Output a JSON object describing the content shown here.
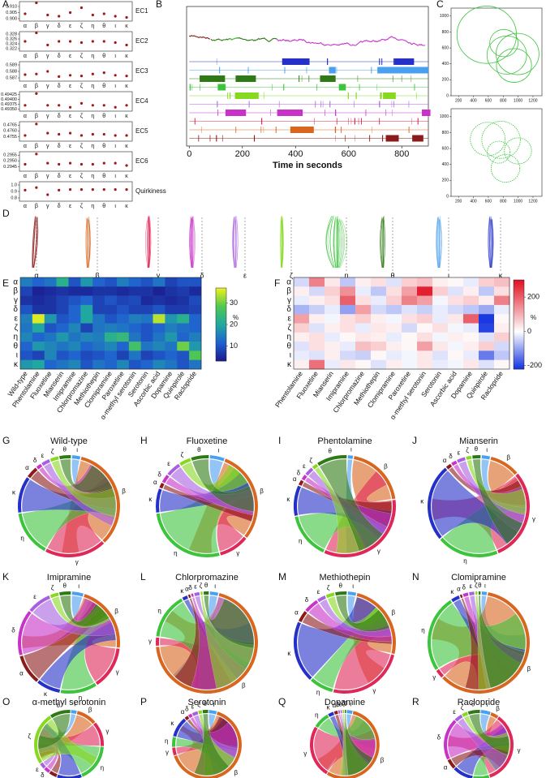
{
  "greek_colors": {
    "α": "#8b1a1a",
    "β": "#d9661f",
    "γ": "#e02858",
    "δ": "#c832c8",
    "ε": "#a860e0",
    "ζ": "#86d820",
    "η": "#3cc43c",
    "θ": "#2f7a14",
    "ι": "#4aa0f0",
    "κ": "#2430c8"
  },
  "panel_labels": [
    "A",
    "B",
    "C",
    "D",
    "E",
    "F",
    "G",
    "H",
    "I",
    "J",
    "K",
    "L",
    "M",
    "N",
    "O",
    "P",
    "Q",
    "R"
  ],
  "chart_data": [
    {
      "type": "dot",
      "label": "EC1",
      "color": "#a01818",
      "categories": [
        "α",
        "β",
        "γ",
        "δ",
        "ε",
        "ζ",
        "η",
        "θ",
        "ι",
        "κ"
      ],
      "values": [
        0.904,
        0.913,
        0.903,
        0.902,
        0.905,
        0.909,
        0.903,
        0.904,
        0.902,
        0.901
      ],
      "ylim": [
        0.898,
        0.914
      ],
      "yticks": [
        {
          "value": 0.9,
          "label": "0.900"
        },
        0.905,
        {
          "value": 0.91,
          "label": "0.910"
        }
      ]
    },
    {
      "type": "dot",
      "label": "EC2",
      "color": "#a01818",
      "categories": [
        "α",
        "β",
        "γ",
        "δ",
        "ε",
        "ζ",
        "η",
        "θ",
        "ι",
        "κ"
      ],
      "values": [
        0.325,
        0.3285,
        0.3235,
        0.325,
        0.325,
        0.3245,
        0.325,
        0.325,
        0.3245,
        0.3235
      ],
      "ylim": [
        0.321,
        0.329
      ],
      "yticks": [
        0.322,
        0.324,
        0.326,
        0.328
      ]
    },
    {
      "type": "dot",
      "label": "EC3",
      "color": "#a01818",
      "categories": [
        "α",
        "β",
        "γ",
        "δ",
        "ε",
        "ζ",
        "η",
        "θ",
        "ι",
        "κ"
      ],
      "values": [
        0.5875,
        0.5876,
        0.588,
        0.5872,
        0.5874,
        0.5873,
        0.5876,
        0.5878,
        0.5874,
        0.5873
      ],
      "ylim": [
        0.5865,
        0.5895
      ],
      "yticks": [
        0.587,
        0.588,
        0.589
      ]
    },
    {
      "type": "dot",
      "label": "EC4",
      "color": "#a01818",
      "categories": [
        "α",
        "β",
        "γ",
        "δ",
        "ε",
        "ζ",
        "η",
        "θ",
        "ι",
        "κ"
      ],
      "values": [
        0.4937,
        0.4943,
        0.4937,
        0.4937,
        0.4936,
        0.4938,
        0.4937,
        0.4937,
        0.4936,
        0.4937
      ],
      "ylim": [
        0.4934,
        0.4944
      ],
      "yticks": [
        {
          "value": 0.4935,
          "label": "0.49350"
        },
        0.49375,
        {
          "value": 0.494,
          "label": "0.49400"
        },
        0.49425
      ]
    },
    {
      "type": "dot",
      "label": "EC5",
      "color": "#a01818",
      "categories": [
        "α",
        "β",
        "γ",
        "δ",
        "ε",
        "ζ",
        "η",
        "θ",
        "ι",
        "κ"
      ],
      "values": [
        0.4756,
        0.4766,
        0.4758,
        0.4757,
        0.4758,
        0.4756,
        0.4757,
        0.4757,
        0.4756,
        0.4756
      ],
      "ylim": [
        0.4751,
        0.4768
      ],
      "yticks": [
        0.4755,
        {
          "value": 0.476,
          "label": "0.4760"
        },
        0.4765
      ]
    },
    {
      "type": "dot",
      "label": "EC6",
      "color": "#a01818",
      "categories": [
        "α",
        "β",
        "γ",
        "δ",
        "ε",
        "ζ",
        "η",
        "θ",
        "ι",
        "κ"
      ],
      "values": [
        0.2947,
        0.2956,
        0.2948,
        0.2947,
        0.2948,
        0.2947,
        0.2947,
        0.2948,
        0.2948,
        0.2946
      ],
      "ylim": [
        0.2941,
        0.2958
      ],
      "yticks": [
        0.2945,
        {
          "value": 0.295,
          "label": "0.2950"
        },
        0.2955
      ]
    },
    {
      "type": "dot",
      "label": "Quirkiness",
      "color": "#a01818",
      "categories": [
        "α",
        "β",
        "γ",
        "δ",
        "ε",
        "ζ",
        "η",
        "θ",
        "ι",
        "κ"
      ],
      "values": [
        0.92,
        0.96,
        0.85,
        0.92,
        0.93,
        0.93,
        0.93,
        0.93,
        0.93,
        0.93
      ],
      "ylim": [
        0.75,
        1.05
      ],
      "yticks": [
        0.8,
        0.9,
        {
          "value": 1.0,
          "label": "1.0"
        }
      ]
    },
    {
      "type": "ethogram",
      "xlabel": "Time in seconds",
      "xlim": [
        -10,
        900
      ],
      "xticks": [
        0,
        200,
        400,
        600,
        800
      ]
    },
    {
      "type": "trajectory",
      "color": "#3cc43c",
      "xlim": [
        100,
        1320
      ],
      "ylim": [
        0,
        1100
      ],
      "xticks": [
        200,
        400,
        600,
        800,
        1000,
        1200
      ],
      "yticks": [
        0,
        200,
        400,
        600,
        800,
        1000
      ]
    },
    {
      "type": "trajectory",
      "color": "#3cc43c",
      "xlim": [
        100,
        1320
      ],
      "ylim": [
        0,
        1100
      ],
      "xticks": [
        200,
        400,
        600,
        800,
        1000,
        1200
      ],
      "yticks": [
        0,
        200,
        400,
        600,
        800,
        1000
      ]
    },
    {
      "type": "shapes",
      "categories": [
        "α",
        "β",
        "γ",
        "δ",
        "ε",
        "ζ",
        "η",
        "θ",
        "ι",
        "κ"
      ]
    },
    {
      "type": "heatmap",
      "rows": [
        "α",
        "β",
        "γ",
        "δ",
        "ε",
        "ζ",
        "η",
        "θ",
        "ι",
        "κ"
      ],
      "categories": [
        "Wild-type",
        "Phentolamine",
        "Fluoxetine",
        "Mianserin",
        "Imipramine",
        "Chlorpromazine",
        "Methiothepin",
        "Clomipramine",
        "Paroxetine",
        "α-methyl serotonin",
        "Serotonin",
        "Ascorbic acid",
        "Dopamine",
        "Quinpirole",
        "Raclopride"
      ],
      "values": [
        [
          15,
          12,
          14,
          22,
          10,
          18,
          12,
          10,
          15,
          12,
          10,
          14,
          8,
          10,
          10
        ],
        [
          8,
          4,
          5,
          6,
          5,
          5,
          6,
          6,
          5,
          6,
          6,
          4,
          6,
          7,
          5
        ],
        [
          6,
          5,
          6,
          8,
          10,
          12,
          8,
          10,
          8,
          9,
          5,
          6,
          5,
          6,
          9
        ],
        [
          10,
          6,
          6,
          8,
          12,
          20,
          8,
          8,
          10,
          8,
          8,
          10,
          7,
          7,
          8
        ],
        [
          15,
          36,
          18,
          10,
          12,
          20,
          14,
          10,
          12,
          15,
          14,
          34,
          18,
          22,
          12
        ],
        [
          14,
          20,
          10,
          12,
          16,
          8,
          14,
          15,
          14,
          12,
          10,
          12,
          15,
          13,
          12
        ],
        [
          16,
          12,
          14,
          18,
          14,
          16,
          15,
          22,
          24,
          14,
          10,
          14,
          18,
          12,
          15
        ],
        [
          12,
          18,
          16,
          14,
          16,
          12,
          14,
          16,
          12,
          26,
          14,
          16,
          14,
          30,
          18
        ],
        [
          10,
          8,
          16,
          10,
          12,
          9,
          10,
          12,
          8,
          14,
          8,
          10,
          12,
          10,
          28
        ],
        [
          18,
          20,
          12,
          14,
          16,
          10,
          14,
          12,
          16,
          10,
          12,
          16,
          14,
          10,
          14
        ]
      ],
      "zlim": [
        3,
        37
      ],
      "zticks": [
        10,
        20,
        30
      ],
      "zlabel": "%",
      "colors": [
        "#1a1a8c",
        "#2060d0",
        "#20a8a0",
        "#50c850",
        "#f0f020"
      ]
    },
    {
      "type": "heatmap",
      "rows": [
        "α",
        "β",
        "γ",
        "δ",
        "ε",
        "ζ",
        "η",
        "θ",
        "ι",
        "κ"
      ],
      "categories": [
        "Phentolamine",
        "Fluoxetine",
        "Mianserin",
        "Imipramine",
        "Chlorpromazine",
        "Methiothepin",
        "Clomipramine",
        "Paroxetine",
        "α-methyl serotonin",
        "Serotonin",
        "Ascorbic acid",
        "Dopamine",
        "Quinpirole",
        "Raclopride"
      ],
      "values": [
        [
          -40,
          160,
          30,
          -60,
          20,
          40,
          -30,
          60,
          80,
          20,
          10,
          -20,
          60,
          80
        ],
        [
          20,
          -40,
          60,
          140,
          -20,
          -60,
          40,
          120,
          280,
          60,
          -30,
          20,
          -60,
          40
        ],
        [
          -20,
          20,
          40,
          200,
          40,
          -20,
          60,
          160,
          120,
          -10,
          40,
          60,
          20,
          160
        ],
        [
          -80,
          -50,
          -20,
          -100,
          120,
          -40,
          -60,
          -30,
          -50,
          -20,
          -40,
          -60,
          -90,
          -20
        ],
        [
          120,
          20,
          -10,
          40,
          60,
          20,
          -10,
          40,
          60,
          -20,
          30,
          200,
          -210,
          10
        ],
        [
          60,
          -30,
          20,
          40,
          -20,
          30,
          20,
          -40,
          10,
          40,
          -10,
          -20,
          -200,
          20
        ],
        [
          20,
          40,
          -20,
          10,
          30,
          20,
          -20,
          10,
          40,
          -10,
          20,
          10,
          -30,
          60
        ],
        [
          -30,
          40,
          20,
          -20,
          80,
          60,
          20,
          10,
          120,
          30,
          -10,
          20,
          60,
          -40
        ],
        [
          -20,
          -30,
          20,
          -40,
          -50,
          10,
          -20,
          -10,
          30,
          -30,
          10,
          -20,
          -140,
          -60
        ],
        [
          20,
          180,
          -20,
          30,
          10,
          -30,
          20,
          -10,
          30,
          -20,
          -10,
          30,
          -30,
          10
        ]
      ],
      "zlim": [
        -220,
        300
      ],
      "zticks": [
        -200,
        0,
        200
      ],
      "zlabel": "%",
      "colors": [
        "#1030e0",
        "#ffffff",
        "#e01020"
      ]
    },
    {
      "type": "chord",
      "title": "Wild-type",
      "categories": [
        "ι",
        "β",
        "γ",
        "η",
        "κ",
        "α",
        "δ",
        "ε",
        "ζ",
        "θ"
      ],
      "values": [
        3,
        34,
        20,
        15,
        12,
        4,
        2,
        3,
        3,
        4
      ]
    },
    {
      "type": "chord",
      "title": "Fluoxetine",
      "categories": [
        "ι",
        "β",
        "γ",
        "η",
        "κ",
        "α",
        "δ",
        "ε",
        "ζ",
        "θ"
      ],
      "values": [
        5,
        30,
        10,
        27,
        8,
        2,
        3,
        5,
        4,
        6
      ]
    },
    {
      "type": "chord",
      "title": "Phentolamine",
      "categories": [
        "ι",
        "β",
        "γ",
        "η",
        "κ",
        "α",
        "δ",
        "ε",
        "ζ",
        "θ"
      ],
      "values": [
        2,
        20,
        34,
        15,
        10,
        2,
        2,
        3,
        2,
        10
      ]
    },
    {
      "type": "chord",
      "title": "Mianserin",
      "categories": [
        "ι",
        "β",
        "γ",
        "η",
        "κ",
        "α",
        "δ",
        "ε",
        "ζ",
        "θ"
      ],
      "values": [
        3,
        10,
        30,
        20,
        25,
        2,
        2,
        3,
        2,
        3
      ]
    },
    {
      "type": "chord",
      "title": "Imipramine",
      "categories": [
        "ι",
        "β",
        "γ",
        "η",
        "κ",
        "α",
        "δ",
        "ε",
        "ζ",
        "θ"
      ],
      "values": [
        4,
        22,
        14,
        12,
        8,
        10,
        15,
        8,
        3,
        4
      ]
    },
    {
      "type": "chord",
      "title": "Chlorpromazine",
      "categories": [
        "ι",
        "β",
        "γ",
        "η",
        "κ",
        "α",
        "δ",
        "ε",
        "ζ",
        "θ"
      ],
      "values": [
        3,
        70,
        3,
        15,
        2,
        1,
        1,
        2,
        1,
        2
      ]
    },
    {
      "type": "chord",
      "title": "Methiothepin",
      "categories": [
        "ι",
        "β",
        "γ",
        "η",
        "κ",
        "α",
        "δ",
        "ε",
        "ζ",
        "θ"
      ],
      "values": [
        3,
        25,
        25,
        8,
        20,
        4,
        5,
        3,
        3,
        4
      ]
    },
    {
      "type": "chord",
      "title": "Clomipramine",
      "categories": [
        "ι",
        "β",
        "γ",
        "η",
        "κ",
        "α",
        "δ",
        "ε",
        "ζ",
        "θ"
      ],
      "values": [
        2,
        60,
        3,
        25,
        3,
        1,
        2,
        2,
        1,
        1
      ]
    },
    {
      "type": "chord",
      "title": "α-methyl serotonin",
      "categories": [
        "ι",
        "β",
        "γ",
        "η",
        "κ",
        "α",
        "δ",
        "ε",
        "ζ",
        "θ"
      ],
      "values": [
        3,
        10,
        12,
        18,
        12,
        4,
        3,
        3,
        25,
        10
      ]
    },
    {
      "type": "chord",
      "title": "Serotonin",
      "categories": [
        "ι",
        "β",
        "γ",
        "η",
        "κ",
        "α",
        "δ",
        "ε",
        "ζ",
        "θ"
      ],
      "values": [
        4,
        65,
        4,
        5,
        10,
        2,
        2,
        3,
        2,
        3
      ]
    },
    {
      "type": "chord",
      "title": "Dopamine",
      "categories": [
        "ι",
        "β",
        "γ",
        "η",
        "κ",
        "α",
        "δ",
        "ε",
        "ζ",
        "θ"
      ],
      "values": [
        3,
        55,
        25,
        8,
        3,
        2,
        1,
        1,
        1,
        1
      ]
    },
    {
      "type": "chord",
      "title": "Raclopride",
      "categories": [
        "ι",
        "β",
        "γ",
        "η",
        "κ",
        "α",
        "δ",
        "ε",
        "ζ",
        "θ"
      ],
      "values": [
        5,
        4,
        35,
        8,
        10,
        5,
        20,
        4,
        3,
        6
      ]
    }
  ]
}
